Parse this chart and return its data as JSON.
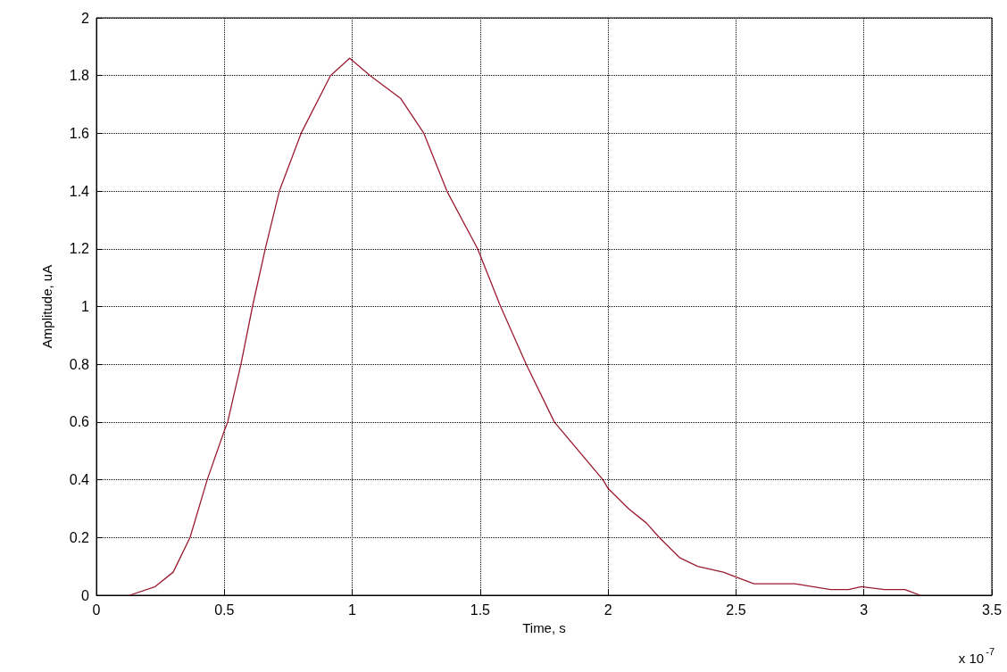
{
  "chart_data": {
    "type": "line",
    "xlabel": "Time, s",
    "ylabel": "Amplitude, uA",
    "annotations": [
      "x 10$^{-7}$"
    ],
    "series": [
      {
        "color": "#9b1b30",
        "x": [
          0.13,
          0.23,
          0.3,
          0.366,
          0.433,
          0.5,
          0.513,
          0.565,
          0.61,
          0.66,
          0.715,
          0.8,
          0.915,
          0.99,
          1.07,
          1.19,
          1.28,
          1.37,
          1.49,
          1.58,
          1.68,
          1.79,
          1.98,
          2.0,
          2.08,
          2.15,
          2.2,
          2.28,
          2.35,
          2.45,
          2.57,
          2.73,
          2.87,
          2.94,
          2.99,
          3.08,
          3.16,
          3.22
        ],
        "values": [
          0,
          0.03,
          0.08,
          0.2,
          0.4,
          0.57,
          0.6,
          0.8,
          1.0,
          1.2,
          1.4,
          1.6,
          1.8,
          1.86,
          1.8,
          1.72,
          1.6,
          1.4,
          1.2,
          1.0,
          0.8,
          0.6,
          0.4,
          0.37,
          0.3,
          0.25,
          0.2,
          0.13,
          0.1,
          0.08,
          0.04,
          0.04,
          0.02,
          0.02,
          0.03,
          0.02,
          0.02,
          0
        ]
      }
    ],
    "xlim": [
      0,
      3.5
    ],
    "xticks": [
      0,
      0.5,
      1,
      1.5,
      2,
      2.5,
      3,
      3.5
    ],
    "ylim": [
      0,
      2
    ],
    "yticks": [
      0,
      0.2,
      0.4,
      0.6,
      0.8,
      1,
      1.2,
      1.4,
      1.6,
      1.8,
      2
    ],
    "grid": true,
    "line_style": "solid",
    "marker": "none"
  }
}
